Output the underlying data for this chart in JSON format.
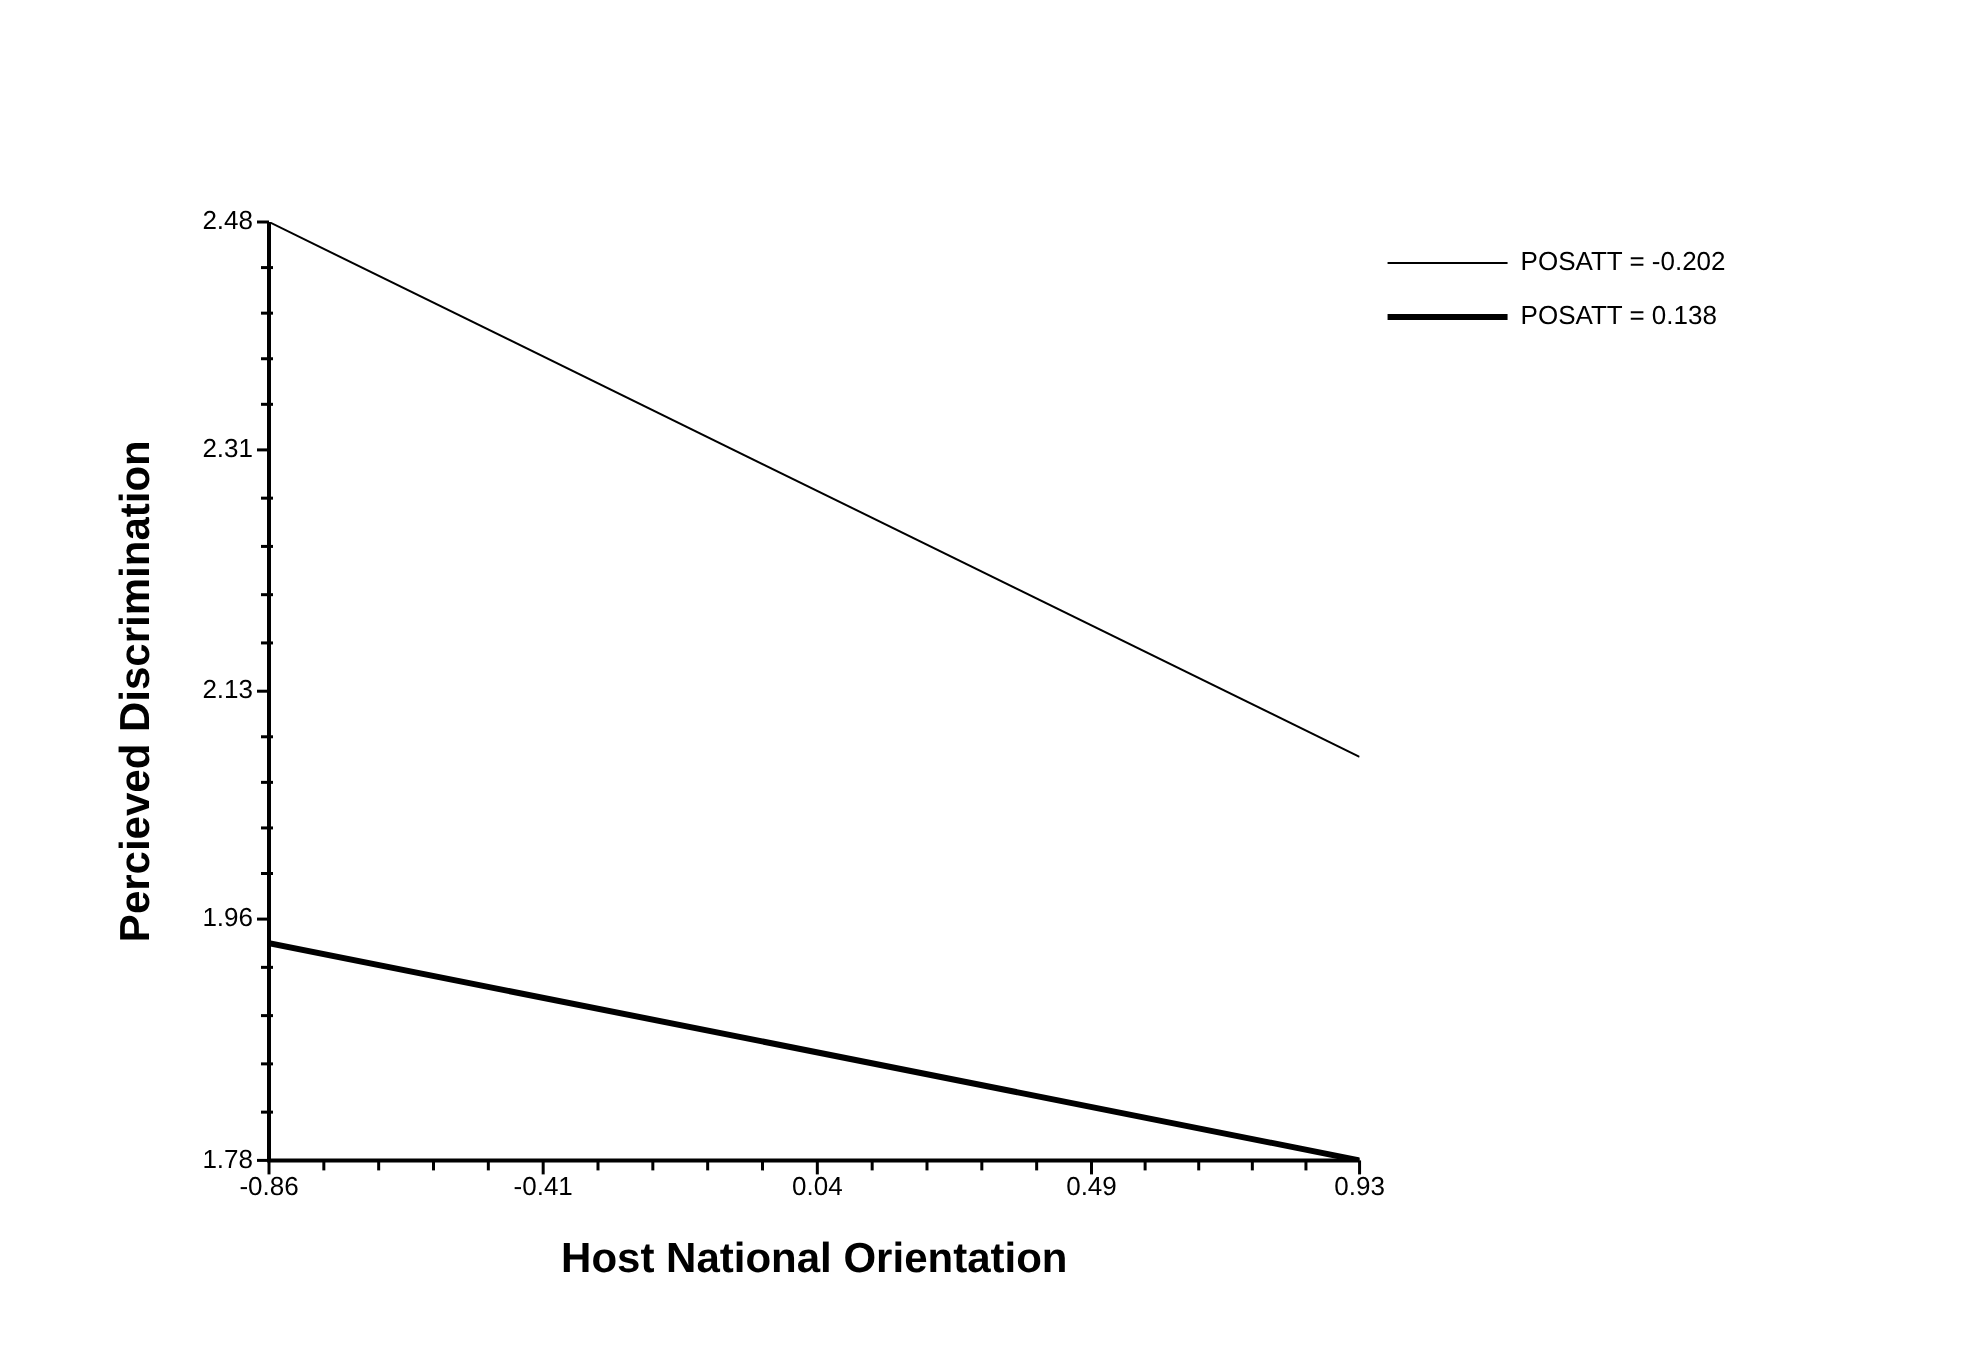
{
  "chart_data": {
    "type": "line",
    "xlabel": "Host National Orientation",
    "ylabel": "Percieved Discrimination",
    "x": [
      -0.86,
      0.93
    ],
    "series": [
      {
        "name": "POSATT = -0.202",
        "color": "#000000",
        "values": [
          2.48,
          2.081
        ]
      },
      {
        "name": "POSATT = 0.138",
        "color": "#000000",
        "values": [
          1.942,
          1.78
        ]
      }
    ],
    "xlim": [
      -0.86,
      0.93
    ],
    "xticks": [
      -0.86,
      {
        "value": -0.77,
        "label": null
      },
      {
        "value": -0.68,
        "label": null
      },
      {
        "value": -0.59,
        "label": null
      },
      {
        "value": -0.5,
        "label": null
      },
      -0.41,
      {
        "value": -0.32,
        "label": null
      },
      {
        "value": -0.23,
        "label": null
      },
      {
        "value": -0.14,
        "label": null
      },
      {
        "value": -0.05,
        "label": null
      },
      0.04,
      {
        "value": 0.13,
        "label": null
      },
      {
        "value": 0.22,
        "label": null
      },
      {
        "value": 0.31,
        "label": null
      },
      {
        "value": 0.4,
        "label": null
      },
      0.49,
      {
        "value": 0.578,
        "label": null
      },
      {
        "value": 0.666,
        "label": null
      },
      {
        "value": 0.754,
        "label": null
      },
      {
        "value": 0.842,
        "label": null
      },
      0.93
    ],
    "ylim": [
      1.78,
      2.48
    ],
    "yticks": [
      1.78,
      {
        "value": 1.816,
        "label": null
      },
      {
        "value": 1.852,
        "label": null
      },
      {
        "value": 1.888,
        "label": null
      },
      {
        "value": 1.924,
        "label": null
      },
      1.96,
      {
        "value": 1.994,
        "label": null
      },
      {
        "value": 2.028,
        "label": null
      },
      {
        "value": 2.062,
        "label": null
      },
      {
        "value": 2.096,
        "label": null
      },
      2.13,
      {
        "value": 2.166,
        "label": null
      },
      {
        "value": 2.202,
        "label": null
      },
      {
        "value": 2.238,
        "label": null
      },
      {
        "value": 2.274,
        "label": null
      },
      2.31,
      {
        "value": 2.344,
        "label": null
      },
      {
        "value": 2.378,
        "label": null
      },
      {
        "value": 2.412,
        "label": null
      },
      {
        "value": 2.446,
        "label": null
      },
      2.48
    ],
    "grid": false,
    "legend": "top right",
    "marker": "none",
    "line_style": "solid"
  }
}
